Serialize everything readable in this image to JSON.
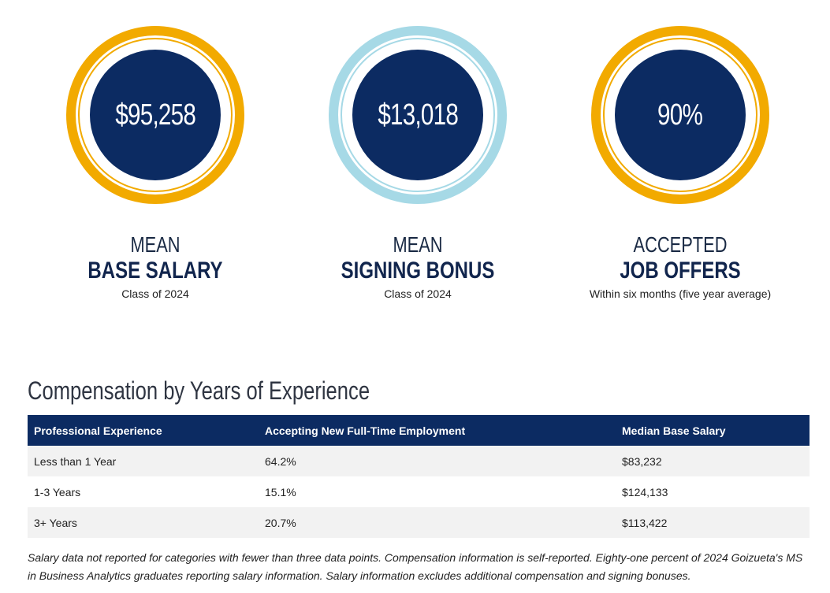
{
  "colors": {
    "navy": "#0c2b62",
    "gold": "#f2aa00",
    "light_blue": "#a6d9e6",
    "row_shade": "#f2f2f2"
  },
  "stats": [
    {
      "value": "$95,258",
      "label_top": "MEAN",
      "label_bold": "BASE SALARY",
      "sub": "Class of 2024",
      "ring_color": "#f2aa00"
    },
    {
      "value": "$13,018",
      "label_top": "MEAN",
      "label_bold": "SIGNING BONUS",
      "sub": "Class of 2024",
      "ring_color": "#a6d9e6"
    },
    {
      "value": "90%",
      "label_top": "ACCEPTED",
      "label_bold": "JOB OFFERS",
      "sub": "Within six months (five year average)",
      "ring_color": "#f2aa00"
    }
  ],
  "compensation": {
    "title": "Compensation by Years of Experience",
    "headers": [
      "Professional Experience",
      "Accepting New Full-Time Employment",
      "Median Base Salary"
    ],
    "rows": [
      [
        "Less than 1 Year",
        "64.2%",
        "$83,232"
      ],
      [
        "1-3 Years",
        "15.1%",
        "$124,133"
      ],
      [
        "3+ Years",
        "20.7%",
        "$113,422"
      ]
    ]
  },
  "footnote": "Salary data not reported for categories with fewer than three data points. Compensation information is self-reported. Eighty-one percent of 2024 Goizueta's MS in Business Analytics graduates reporting salary information. Salary information excludes additional compensation and signing bonuses."
}
